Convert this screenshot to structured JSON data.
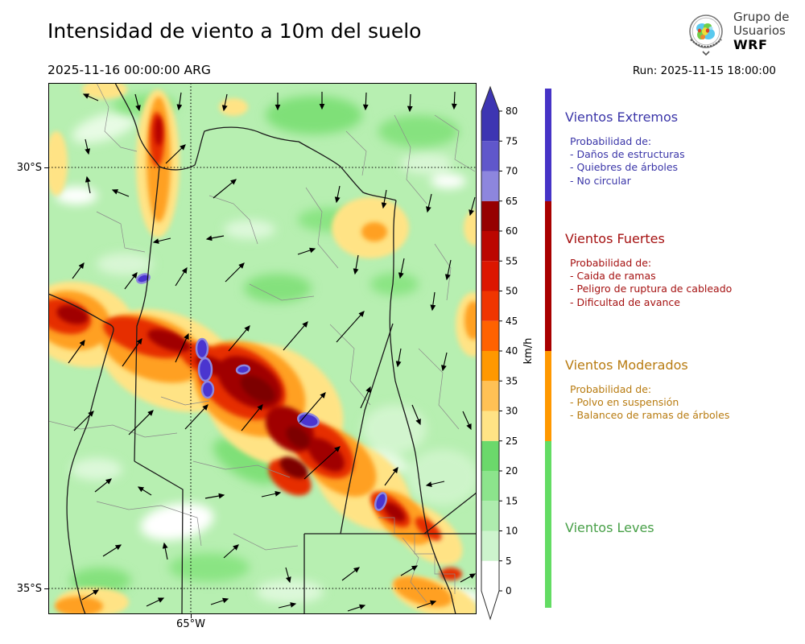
{
  "header": {
    "title": "Intensidad de viento a 10m del suelo",
    "valid_time": "2025-11-16 00:00:00 ARG",
    "run_label": "Run: 2025-11-15 18:00:00",
    "logo": {
      "line1": "Grupo de",
      "line2": "Usuarios",
      "line3": "WRF"
    }
  },
  "map": {
    "lat_top": "30°S",
    "lat_bottom": "35°S",
    "lon": "65°W"
  },
  "chart_data": {
    "type": "heatmap",
    "title": "Intensidad de viento a 10m del suelo",
    "valid_time": "2025-11-16 00:00:00 ARG",
    "run": "Run: 2025-11-15 18:00:00",
    "unit": "km/h",
    "graticule": {
      "lats": [
        "30°S",
        "35°S"
      ],
      "lons": [
        "65°W"
      ]
    },
    "colorbar": {
      "min": 0,
      "max": 80,
      "tick_step": 5,
      "ticks": [
        0,
        5,
        10,
        15,
        20,
        25,
        30,
        35,
        40,
        45,
        50,
        55,
        60,
        65,
        70,
        75,
        80
      ],
      "bands": [
        {
          "from": 0,
          "to": 5,
          "color": "#ffffff"
        },
        {
          "from": 5,
          "to": 10,
          "color": "#cdf4cd"
        },
        {
          "from": 10,
          "to": 15,
          "color": "#aeecae"
        },
        {
          "from": 15,
          "to": 20,
          "color": "#8ce48c"
        },
        {
          "from": 20,
          "to": 25,
          "color": "#6bd96b"
        },
        {
          "from": 25,
          "to": 30,
          "color": "#ffe385"
        },
        {
          "from": 30,
          "to": 35,
          "color": "#ffc155"
        },
        {
          "from": 35,
          "to": 40,
          "color": "#ff9800"
        },
        {
          "from": 40,
          "to": 45,
          "color": "#ff6200"
        },
        {
          "from": 45,
          "to": 50,
          "color": "#f03500"
        },
        {
          "from": 50,
          "to": 55,
          "color": "#dc1600"
        },
        {
          "from": 55,
          "to": 60,
          "color": "#bb0600"
        },
        {
          "from": 60,
          "to": 65,
          "color": "#960000"
        },
        {
          "from": 65,
          "to": 70,
          "color": "#8d86de"
        },
        {
          "from": 70,
          "to": 75,
          "color": "#6057cb"
        },
        {
          "from": 75,
          "to": 80,
          "color": "#3d35b2"
        }
      ],
      "over_color": "#3d35b2",
      "under_color": "#ffffff"
    },
    "categories": [
      {
        "label": "Vientos Extremos",
        "range_kmh": [
          65,
          null
        ],
        "bar_color": "#4633c6",
        "text_color": "#3a35a8"
      },
      {
        "label": "Vientos Fuertes",
        "range_kmh": [
          40,
          65
        ],
        "bar_color": "#a80000",
        "text_color": "#a51111"
      },
      {
        "label": "Vientos Moderados",
        "range_kmh": [
          25,
          40
        ],
        "bar_color": "#ff9800",
        "text_color": "#b87b10"
      },
      {
        "label": "Vientos Leves",
        "range_kmh": [
          0,
          25
        ],
        "bar_color": "#63dc63",
        "text_color": "#48a048"
      }
    ]
  },
  "legend": {
    "sections": [
      {
        "heading": "Vientos Extremos",
        "prob": "Probabilidad de:",
        "items": [
          "- Daños de estructuras",
          "- Quiebres de árboles",
          "- No circular"
        ]
      },
      {
        "heading": "Vientos Fuertes",
        "prob": "Probabilidad de:",
        "items": [
          "- Caida de ramas",
          "- Peligro de ruptura de cableado",
          "- Dificultad de avance"
        ]
      },
      {
        "heading": "Vientos Moderados",
        "prob": "Probabilidad de:",
        "items": [
          "- Polvo en suspensión",
          "- Balanceo de ramas de árboles"
        ]
      },
      {
        "heading": "Vientos Leves",
        "prob": "",
        "items": []
      }
    ]
  }
}
